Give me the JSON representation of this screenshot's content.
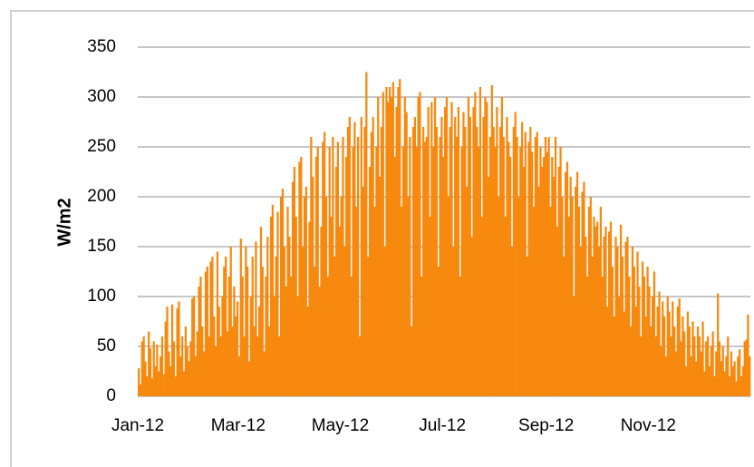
{
  "chart_data": {
    "type": "bar",
    "y_label": "W/m2",
    "color": "#f7890f",
    "values": [
      28,
      12,
      55,
      60,
      35,
      20,
      65,
      48,
      18,
      55,
      30,
      52,
      25,
      40,
      60,
      22,
      75,
      90,
      45,
      30,
      92,
      55,
      20,
      88,
      95,
      40,
      60,
      25,
      70,
      50,
      35,
      55,
      98,
      100,
      40,
      65,
      110,
      120,
      70,
      45,
      125,
      130,
      60,
      135,
      140,
      80,
      50,
      145,
      90,
      60,
      100,
      130,
      140,
      65,
      120,
      150,
      70,
      110,
      80,
      95,
      40,
      158,
      120,
      60,
      150,
      130,
      35,
      100,
      140,
      70,
      155,
      60,
      90,
      170,
      130,
      45,
      120,
      160,
      70,
      180,
      192,
      100,
      140,
      185,
      60,
      200,
      208,
      150,
      110,
      190,
      160,
      120,
      215,
      230,
      180,
      100,
      235,
      240,
      150,
      200,
      210,
      90,
      175,
      260,
      220,
      130,
      240,
      250,
      110,
      170,
      255,
      265,
      200,
      120,
      250,
      180,
      260,
      140,
      230,
      255,
      170,
      200,
      260,
      150,
      240,
      270,
      280,
      120,
      250,
      275,
      190,
      260,
      60,
      280,
      210,
      270,
      325,
      140,
      230,
      265,
      280,
      190,
      250,
      300,
      220,
      270,
      305,
      150,
      310,
      295,
      310,
      300,
      315,
      240,
      290,
      310,
      318,
      190,
      250,
      300,
      285,
      200,
      260,
      70,
      270,
      280,
      250,
      300,
      305,
      120,
      270,
      255,
      260,
      290,
      180,
      295,
      250,
      300,
      270,
      130,
      260,
      280,
      240,
      290,
      300,
      200,
      270,
      295,
      150,
      280,
      260,
      290,
      120,
      250,
      285,
      270,
      210,
      300,
      280,
      160,
      290,
      305,
      270,
      250,
      310,
      180,
      280,
      300,
      295,
      220,
      260,
      312,
      270,
      250,
      290,
      200,
      270,
      300,
      260,
      180,
      280,
      255,
      240,
      150,
      270,
      285,
      260,
      200,
      250,
      275,
      230,
      265,
      140,
      255,
      270,
      245,
      190,
      260,
      265,
      210,
      250,
      230,
      240,
      260,
      245,
      260,
      190,
      240,
      220,
      260,
      170,
      230,
      250,
      200,
      140,
      225,
      235,
      180,
      220,
      200,
      100,
      210,
      225,
      190,
      150,
      205,
      215,
      160,
      120,
      190,
      200,
      140,
      180,
      170,
      175,
      150,
      190,
      120,
      160,
      170,
      90,
      165,
      175,
      130,
      80,
      160,
      150,
      100,
      172,
      140,
      85,
      155,
      160,
      120,
      70,
      150,
      130,
      90,
      145,
      110,
      60,
      135,
      120,
      80,
      130,
      110,
      70,
      100,
      125,
      60,
      90,
      105,
      50,
      95,
      80,
      40,
      100,
      85,
      60,
      95,
      70,
      45,
      90,
      98,
      55,
      80,
      65,
      30,
      85,
      70,
      40,
      75,
      60,
      35,
      70,
      60,
      45,
      75,
      25,
      55,
      60,
      30,
      50,
      65,
      20,
      45,
      103,
      55,
      35,
      50,
      25,
      40,
      60,
      20,
      45,
      30,
      35,
      15,
      40,
      47,
      20,
      30,
      55,
      57,
      82,
      40
    ],
    "xlim": [
      0,
      366
    ],
    "xticks": [
      {
        "value": 0,
        "label": "Jan-12"
      },
      {
        "value": 60,
        "label": "Mar-12"
      },
      {
        "value": 121,
        "label": "May-12"
      },
      {
        "value": 182,
        "label": "Jul-12"
      },
      {
        "value": 244,
        "label": "Sep-12"
      },
      {
        "value": 305,
        "label": "Nov-12"
      }
    ],
    "ylim": [
      0,
      350
    ],
    "yticks": [
      0,
      50,
      100,
      150,
      200,
      250,
      300,
      350
    ],
    "grid": true
  }
}
